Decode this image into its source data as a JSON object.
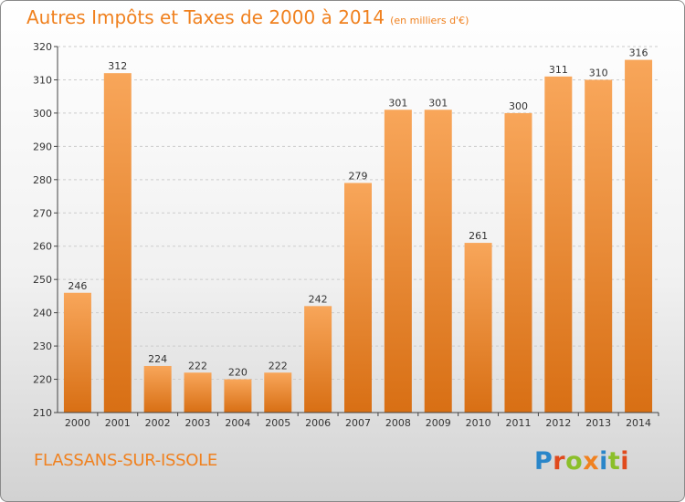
{
  "title": "Autres Impôts et Taxes de 2000 à 2014",
  "unit": "(en milliers d'€)",
  "commune": "FLASSANS-SUR-ISSOLE",
  "logo": {
    "letters": [
      "P",
      "r",
      "o",
      "x",
      "i",
      "t",
      "i"
    ],
    "colors": [
      "#2a86c9",
      "#e04a1d",
      "#8bbf2a",
      "#f0811f",
      "#2a86c9",
      "#8bbf2a",
      "#e04a1d"
    ]
  },
  "colors": {
    "accent": "#f0811f",
    "bar_top": "#f8a65a",
    "bar_bottom": "#d86f14",
    "grid": "#cccccc",
    "axis": "#444444"
  },
  "chart_data": {
    "type": "bar",
    "categories": [
      "2000",
      "2001",
      "2002",
      "2003",
      "2004",
      "2005",
      "2006",
      "2007",
      "2008",
      "2009",
      "2010",
      "2011",
      "2012",
      "2013",
      "2014"
    ],
    "values": [
      246,
      312,
      224,
      222,
      220,
      222,
      242,
      279,
      301,
      301,
      261,
      300,
      311,
      310,
      316
    ],
    "title": "Autres Impôts et Taxes de 2000 à 2014",
    "ylim": [
      210,
      320
    ],
    "yticks": [
      210,
      220,
      230,
      240,
      250,
      260,
      270,
      280,
      290,
      300,
      310,
      320
    ],
    "grid": true,
    "data_labels": true
  }
}
